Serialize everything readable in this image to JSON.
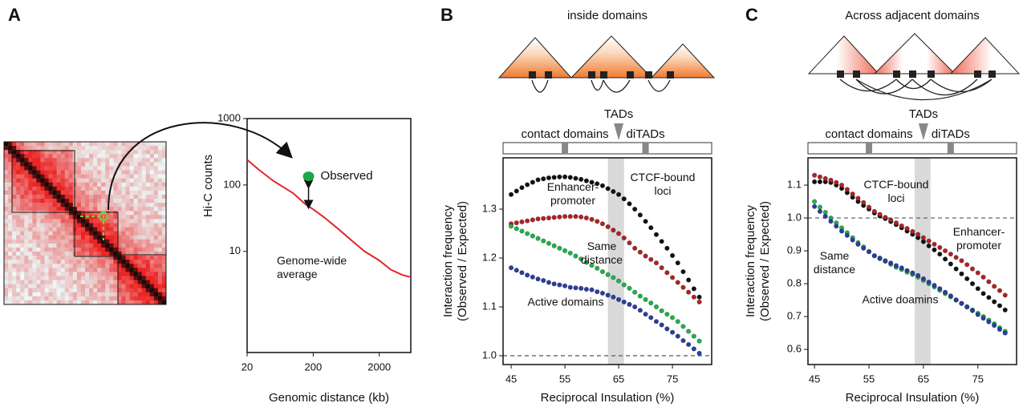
{
  "chart_data": [
    {
      "type": "line",
      "panel": "A",
      "xlabel": "Genomic distance (kb)",
      "ylabel": "Hi-C counts",
      "xscale": "log",
      "yscale": "log",
      "xlim": [
        20,
        6000
      ],
      "ylim": [
        0.3,
        1000
      ],
      "xticks": [
        20,
        200,
        2000
      ],
      "yticks": [
        10,
        100,
        1000
      ],
      "x": [
        20,
        30,
        50,
        100,
        150,
        200,
        300,
        500,
        800,
        1200,
        2000,
        3000,
        4500,
        6000
      ],
      "series": [
        {
          "name": "Genome-wide\naverage",
          "color": "#e0262b",
          "values": [
            240,
            170,
            115,
            75,
            52,
            43,
            32,
            21,
            14,
            10,
            7.3,
            5.3,
            4.4,
            4.1
          ]
        }
      ],
      "points": [
        {
          "name": "Observed",
          "x": 170,
          "y": 135,
          "color": "#1aa84b"
        }
      ]
    },
    {
      "type": "scatter",
      "panel": "B",
      "title": "inside domains",
      "xlabel": "Reciprocal Insulation (%)",
      "ylabel": "Interaction frequency\n(Observed / Expected)",
      "xlim": [
        43.5,
        82.3
      ],
      "ylim": [
        0.982,
        1.405
      ],
      "xticks": [
        45,
        55,
        65,
        75
      ],
      "yticks": [
        {
          "value": 1,
          "label": "1.0"
        },
        1.1,
        1.2,
        1.3
      ],
      "hline": 1,
      "shade_x": [
        63,
        66
      ],
      "scale_markers": [
        {
          "label": "contact domains",
          "x": 55,
          "shape": "square"
        },
        {
          "label": "TADs",
          "x": 65,
          "shape": "triangle"
        },
        {
          "label": "diTADs",
          "x": 70,
          "shape": "square"
        }
      ],
      "x": [
        45,
        46,
        47,
        48,
        49,
        50,
        51,
        52,
        53,
        54,
        55,
        56,
        57,
        58,
        59,
        60,
        61,
        62,
        63,
        64,
        65,
        66,
        67,
        68,
        69,
        70,
        71,
        72,
        73,
        74,
        75,
        76,
        77,
        78,
        79,
        80
      ],
      "series": [
        {
          "name": "CTCF-bound\nloci",
          "color": "#111111",
          "values": [
            1.33,
            1.337,
            1.344,
            1.35,
            1.355,
            1.36,
            1.362,
            1.364,
            1.365,
            1.366,
            1.366,
            1.365,
            1.363,
            1.361,
            1.358,
            1.355,
            1.352,
            1.348,
            1.342,
            1.336,
            1.33,
            1.321,
            1.311,
            1.3,
            1.288,
            1.275,
            1.262,
            1.248,
            1.234,
            1.22,
            1.205,
            1.19,
            1.172,
            1.155,
            1.137,
            1.12
          ]
        },
        {
          "name": "Enhancer-\npromoter",
          "color": "#b02222",
          "values": [
            1.27,
            1.272,
            1.274,
            1.276,
            1.278,
            1.28,
            1.281,
            1.282,
            1.283,
            1.284,
            1.285,
            1.285,
            1.285,
            1.284,
            1.282,
            1.279,
            1.275,
            1.27,
            1.264,
            1.257,
            1.25,
            1.241,
            1.231,
            1.22,
            1.212,
            1.204,
            1.197,
            1.19,
            1.18,
            1.17,
            1.16,
            1.15,
            1.14,
            1.13,
            1.12,
            1.11
          ]
        },
        {
          "name": "Same\ndistance",
          "color": "#1fb14c",
          "values": [
            1.265,
            1.26,
            1.255,
            1.25,
            1.245,
            1.24,
            1.235,
            1.23,
            1.225,
            1.22,
            1.215,
            1.21,
            1.204,
            1.198,
            1.191,
            1.185,
            1.179,
            1.172,
            1.166,
            1.16,
            1.153,
            1.145,
            1.138,
            1.13,
            1.122,
            1.115,
            1.108,
            1.1,
            1.092,
            1.085,
            1.078,
            1.07,
            1.06,
            1.05,
            1.04,
            1.03
          ]
        },
        {
          "name": "Active domains",
          "color": "#2b3d9e",
          "values": [
            1.18,
            1.175,
            1.17,
            1.165,
            1.161,
            1.157,
            1.154,
            1.15,
            1.147,
            1.145,
            1.143,
            1.14,
            1.139,
            1.138,
            1.136,
            1.135,
            1.131,
            1.128,
            1.124,
            1.12,
            1.115,
            1.11,
            1.105,
            1.1,
            1.093,
            1.085,
            1.078,
            1.07,
            1.063,
            1.055,
            1.048,
            1.04,
            1.031,
            1.023,
            1.014,
            1.005
          ]
        }
      ]
    },
    {
      "type": "scatter",
      "panel": "C",
      "title": "Across adjacent domains",
      "xlabel": "Reciprocal Insulation (%)",
      "ylabel": "Interaction frequency\n(Observed / Expected)",
      "xlim": [
        43.8,
        82.1
      ],
      "ylim": [
        0.554,
        1.183
      ],
      "xticks": [
        45,
        55,
        65,
        75
      ],
      "yticks": [
        0.6,
        0.7,
        0.8,
        0.9,
        {
          "value": 1,
          "label": "1.0"
        },
        1.1
      ],
      "hline": 1,
      "shade_x": [
        63.4,
        66.3
      ],
      "scale_markers": [
        {
          "label": "contact domains",
          "x": 55,
          "shape": "square"
        },
        {
          "label": "TADs",
          "x": 65,
          "shape": "triangle"
        },
        {
          "label": "diTADs",
          "x": 70,
          "shape": "square"
        }
      ],
      "x": [
        45,
        46,
        47,
        48,
        49,
        50,
        51,
        52,
        53,
        54,
        55,
        56,
        57,
        58,
        59,
        60,
        61,
        62,
        63,
        64,
        65,
        66,
        67,
        68,
        69,
        70,
        71,
        72,
        73,
        74,
        75,
        76,
        77,
        78,
        79,
        80
      ],
      "series": [
        {
          "name": "CTCF-bound\nloci",
          "color": "#111111",
          "values": [
            1.11,
            1.11,
            1.11,
            1.108,
            1.1,
            1.09,
            1.077,
            1.063,
            1.05,
            1.038,
            1.027,
            1.015,
            1.006,
            0.998,
            0.989,
            0.98,
            0.97,
            0.96,
            0.95,
            0.94,
            0.928,
            0.915,
            0.903,
            0.89,
            0.875,
            0.86,
            0.845,
            0.83,
            0.815,
            0.8,
            0.785,
            0.77,
            0.758,
            0.745,
            0.733,
            0.72
          ]
        },
        {
          "name": "Enhancer-\npromoter",
          "color": "#b02222",
          "values": [
            1.13,
            1.125,
            1.12,
            1.115,
            1.108,
            1.1,
            1.087,
            1.073,
            1.06,
            1.047,
            1.033,
            1.02,
            1.011,
            1.002,
            0.994,
            0.985,
            0.976,
            0.968,
            0.959,
            0.95,
            0.94,
            0.93,
            0.92,
            0.91,
            0.9,
            0.89,
            0.88,
            0.87,
            0.858,
            0.845,
            0.833,
            0.82,
            0.806,
            0.792,
            0.779,
            0.765
          ]
        },
        {
          "name": "Same\ndistance",
          "color": "#1fb14c",
          "values": [
            1.05,
            1.033,
            1.017,
            1.0,
            0.985,
            0.97,
            0.955,
            0.94,
            0.925,
            0.912,
            0.898,
            0.885,
            0.876,
            0.868,
            0.859,
            0.85,
            0.843,
            0.835,
            0.828,
            0.82,
            0.81,
            0.8,
            0.79,
            0.78,
            0.77,
            0.76,
            0.75,
            0.74,
            0.73,
            0.72,
            0.71,
            0.7,
            0.689,
            0.678,
            0.666,
            0.655
          ]
        },
        {
          "name": "Active doamins",
          "color": "#2b3d9e",
          "values": [
            1.035,
            1.02,
            1.005,
            0.99,
            0.975,
            0.96,
            0.947,
            0.933,
            0.92,
            0.908,
            0.897,
            0.885,
            0.878,
            0.87,
            0.863,
            0.855,
            0.848,
            0.84,
            0.833,
            0.825,
            0.815,
            0.805,
            0.795,
            0.785,
            0.774,
            0.763,
            0.751,
            0.74,
            0.729,
            0.718,
            0.706,
            0.695,
            0.684,
            0.673,
            0.661,
            0.65
          ]
        }
      ]
    }
  ]
}
